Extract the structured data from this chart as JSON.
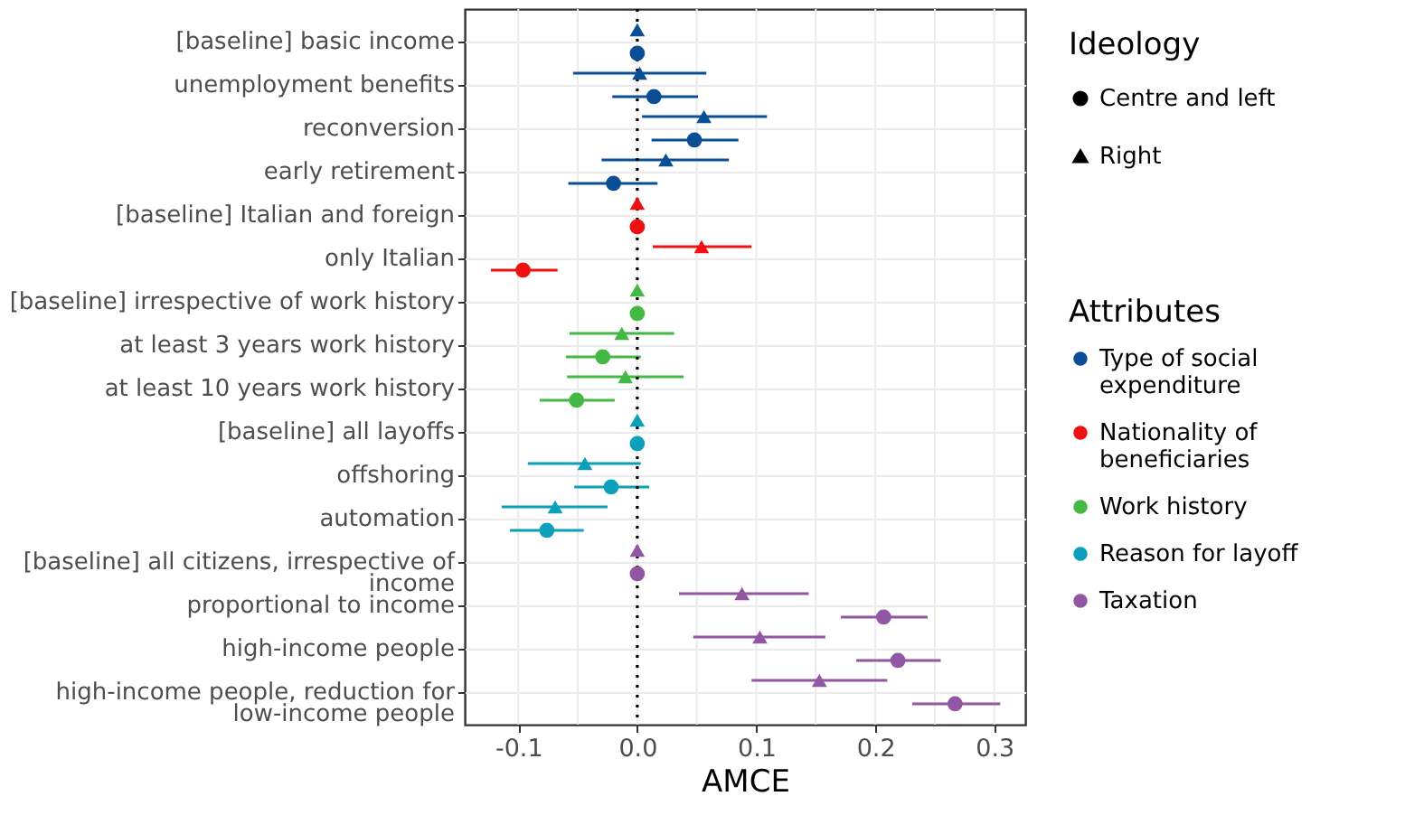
{
  "chart_data": {
    "type": "scatter",
    "orientation": "horizontal",
    "xlabel": "AMCE",
    "categories": [
      "[baseline] basic income",
      "unemployment benefits",
      "reconversion",
      "early retirement",
      "[baseline] Italian and foreign",
      "only Italian",
      "[baseline] irrespective of work history",
      "at least 3 years work history",
      "at least 10 years work history",
      "[baseline] all layoffs",
      "offshoring",
      "automation",
      "[baseline] all citizens, irrespective of income",
      "proportional to income",
      "high-income people",
      "high-income people, reduction for low-income people"
    ],
    "legend_title": [
      "Ideology",
      "Attributes"
    ],
    "annotations": [
      "Centre and left",
      "Right"
    ],
    "series": [
      {
        "color": "#0a4f96",
        "marker": "triangle",
        "values": [
          0,
          0.002,
          0.056,
          0.024,
          null,
          null,
          null,
          null,
          null,
          null,
          null,
          null,
          null,
          null,
          null,
          null
        ],
        "errors": [
          null,
          [
            -0.054,
            0.058
          ],
          [
            0.004,
            0.109
          ],
          [
            -0.03,
            0.077
          ],
          null,
          null,
          null,
          null,
          null,
          null,
          null,
          null,
          null,
          null,
          null,
          null
        ]
      },
      {
        "name": "Type of social expenditure",
        "color": "#0a4f96",
        "marker": "circle",
        "values": [
          0,
          0.014,
          0.048,
          -0.02,
          null,
          null,
          null,
          null,
          null,
          null,
          null,
          null,
          null,
          null,
          null,
          null
        ],
        "errors": [
          null,
          [
            -0.021,
            0.051
          ],
          [
            0.012,
            0.085
          ],
          [
            -0.058,
            0.017
          ],
          null,
          null,
          null,
          null,
          null,
          null,
          null,
          null,
          null,
          null,
          null,
          null
        ]
      },
      {
        "color": "#ee1111",
        "marker": "triangle",
        "values": [
          null,
          null,
          null,
          null,
          0,
          0.054,
          null,
          null,
          null,
          null,
          null,
          null,
          null,
          null,
          null,
          null
        ],
        "errors": [
          null,
          null,
          null,
          null,
          null,
          [
            0.013,
            0.096
          ],
          null,
          null,
          null,
          null,
          null,
          null,
          null,
          null,
          null,
          null
        ]
      },
      {
        "name": "Nationality of beneficiaries",
        "color": "#ee1111",
        "marker": "circle",
        "values": [
          null,
          null,
          null,
          null,
          0,
          -0.096,
          null,
          null,
          null,
          null,
          null,
          null,
          null,
          null,
          null,
          null
        ],
        "errors": [
          null,
          null,
          null,
          null,
          null,
          [
            -0.123,
            -0.067
          ],
          null,
          null,
          null,
          null,
          null,
          null,
          null,
          null,
          null,
          null
        ]
      },
      {
        "color": "#44b844",
        "marker": "triangle",
        "values": [
          null,
          null,
          null,
          null,
          null,
          null,
          0,
          -0.013,
          -0.01,
          null,
          null,
          null,
          null,
          null,
          null,
          null
        ],
        "errors": [
          null,
          null,
          null,
          null,
          null,
          null,
          null,
          [
            -0.057,
            0.031
          ],
          [
            -0.059,
            0.039
          ],
          null,
          null,
          null,
          null,
          null,
          null,
          null
        ]
      },
      {
        "name": "Work history",
        "color": "#44b844",
        "marker": "circle",
        "values": [
          null,
          null,
          null,
          null,
          null,
          null,
          0,
          -0.029,
          -0.051,
          null,
          null,
          null,
          null,
          null,
          null,
          null
        ],
        "errors": [
          null,
          null,
          null,
          null,
          null,
          null,
          null,
          [
            -0.06,
            0.003
          ],
          [
            -0.082,
            -0.019
          ],
          null,
          null,
          null,
          null,
          null,
          null,
          null
        ]
      },
      {
        "color": "#0da0bb",
        "marker": "triangle",
        "values": [
          null,
          null,
          null,
          null,
          null,
          null,
          null,
          null,
          null,
          0,
          -0.044,
          -0.069,
          null,
          null,
          null,
          null
        ],
        "errors": [
          null,
          null,
          null,
          null,
          null,
          null,
          null,
          null,
          null,
          null,
          [
            -0.092,
            0.003
          ],
          [
            -0.114,
            -0.025
          ],
          null,
          null,
          null,
          null
        ]
      },
      {
        "name": "Reason for layoff",
        "color": "#0da0bb",
        "marker": "circle",
        "values": [
          null,
          null,
          null,
          null,
          null,
          null,
          null,
          null,
          null,
          0,
          -0.022,
          -0.076,
          null,
          null,
          null,
          null
        ],
        "errors": [
          null,
          null,
          null,
          null,
          null,
          null,
          null,
          null,
          null,
          null,
          [
            -0.053,
            0.01
          ],
          [
            -0.107,
            -0.045
          ],
          null,
          null,
          null,
          null
        ]
      },
      {
        "color": "#9257a3",
        "marker": "triangle",
        "values": [
          null,
          null,
          null,
          null,
          null,
          null,
          null,
          null,
          null,
          null,
          null,
          null,
          0,
          0.088,
          0.103,
          0.153
        ],
        "errors": [
          null,
          null,
          null,
          null,
          null,
          null,
          null,
          null,
          null,
          null,
          null,
          null,
          null,
          [
            0.035,
            0.144
          ],
          [
            0.047,
            0.158
          ],
          [
            0.096,
            0.21
          ]
        ]
      },
      {
        "name": "Taxation",
        "color": "#9257a3",
        "marker": "circle",
        "values": [
          null,
          null,
          null,
          null,
          null,
          null,
          null,
          null,
          null,
          null,
          null,
          null,
          0,
          0.207,
          0.219,
          0.267
        ],
        "errors": [
          null,
          null,
          null,
          null,
          null,
          null,
          null,
          null,
          null,
          null,
          null,
          null,
          null,
          [
            0.171,
            0.244
          ],
          [
            0.184,
            0.255
          ],
          [
            0.231,
            0.305
          ]
        ]
      }
    ],
    "xlim": [
      -0.145,
      0.326
    ],
    "xticks": [
      {
        "value": -0.1,
        "label": "-0.1"
      },
      {
        "value": -0.05,
        "label": null
      },
      {
        "value": 0,
        "label": "0.0"
      },
      {
        "value": 0.05,
        "label": null
      },
      {
        "value": 0.1,
        "label": "0.1"
      },
      {
        "value": 0.15,
        "label": null
      },
      {
        "value": 0.2,
        "label": "0.2"
      },
      {
        "value": 0.25,
        "label": null
      },
      {
        "value": 0.3,
        "label": "0.3"
      }
    ],
    "grid": true,
    "legend": "right",
    "ref_lines": [
      {
        "axis": "x",
        "value": 0,
        "line_style": "dotted",
        "color": "#000000"
      }
    ]
  }
}
